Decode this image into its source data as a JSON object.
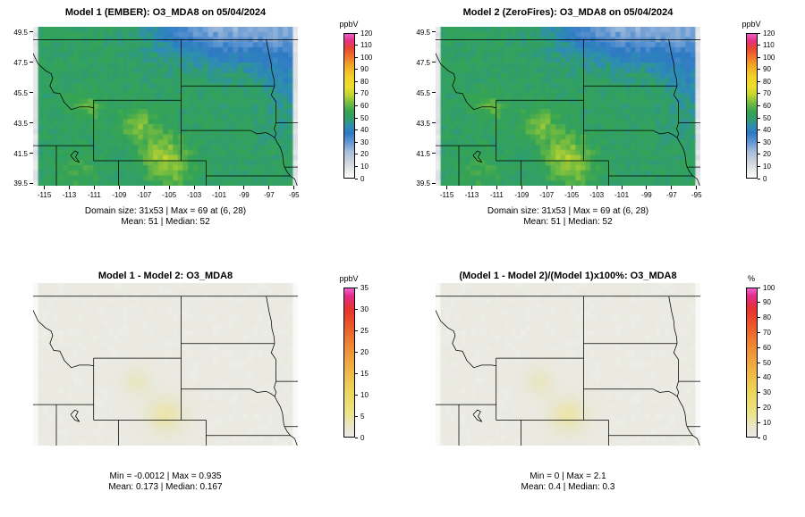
{
  "page": {
    "background": "#ffffff"
  },
  "axes": {
    "x_ticks": [
      -115,
      -113,
      -111,
      -109,
      -107,
      -105,
      -103,
      -101,
      -99,
      -97,
      -95
    ],
    "y_ticks": [
      39.5,
      41.5,
      43.5,
      45.5,
      47.5,
      49.5
    ]
  },
  "panels": [
    {
      "kind": "field",
      "title": "Model 1 (EMBER): O3_MDA8 on 05/04/2024",
      "colorbar_label": "ppbV",
      "colorbar_max": 120,
      "colorbar_ticks": [
        0,
        10,
        20,
        30,
        40,
        50,
        60,
        70,
        80,
        90,
        100,
        110,
        120
      ],
      "caption1": "Domain size: 31x53 | Max = 69 at (6, 28)",
      "caption2": "Mean: 51 |  Median: 52"
    },
    {
      "kind": "field",
      "title": "Model 2 (ZeroFires): O3_MDA8 on 05/04/2024",
      "colorbar_label": "ppbV",
      "colorbar_max": 120,
      "colorbar_ticks": [
        0,
        10,
        20,
        30,
        40,
        50,
        60,
        70,
        80,
        90,
        100,
        110,
        120
      ],
      "caption1": "Domain size: 31x53 | Max = 69 at (6, 28)",
      "caption2": "Mean: 51 |  Median: 52"
    },
    {
      "kind": "diff",
      "title": "Model 1 - Model 2: O3_MDA8",
      "colorbar_label": "ppbV",
      "colorbar_max": 35,
      "colorbar_ticks": [
        0,
        5,
        10,
        15,
        20,
        25,
        30,
        35
      ],
      "caption1": "Min = -0.0012 | Max = 0.935",
      "caption2": "Mean: 0.173 |  Median: 0.167"
    },
    {
      "kind": "diff",
      "title": "(Model 1 - Model 2)/(Model 1)x100%: O3_MDA8",
      "colorbar_label": "%",
      "colorbar_max": 100,
      "colorbar_ticks": [
        0,
        10,
        20,
        30,
        40,
        50,
        60,
        70,
        80,
        90,
        100
      ],
      "caption1": "Min = 0 | Max = 2.1",
      "caption2": "Mean: 0.4 |  Median: 0.3"
    }
  ],
  "colors": {
    "border_color": "#000000",
    "field_palette": [
      [
        0.0,
        "#ffffff"
      ],
      [
        0.05,
        "#e9eaec"
      ],
      [
        0.11,
        "#ccd3dd"
      ],
      [
        0.18,
        "#a6bedd"
      ],
      [
        0.25,
        "#5e95d1"
      ],
      [
        0.31,
        "#2e79c4"
      ],
      [
        0.36,
        "#2e8eb2"
      ],
      [
        0.405,
        "#2f9e6d"
      ],
      [
        0.46,
        "#36a452"
      ],
      [
        0.52,
        "#74bc40"
      ],
      [
        0.575,
        "#c2d531"
      ],
      [
        0.63,
        "#ebdf2b"
      ],
      [
        0.7,
        "#f3d128"
      ],
      [
        0.78,
        "#f4a627"
      ],
      [
        0.85,
        "#ef6c2a"
      ],
      [
        0.9,
        "#e94530"
      ],
      [
        0.95,
        "#e62f80"
      ],
      [
        1.0,
        "#ee5ec6"
      ]
    ],
    "diff_palette": [
      [
        0.0,
        "#ffffff"
      ],
      [
        0.003,
        "#f3f3ef"
      ],
      [
        0.008,
        "#eaeae3"
      ],
      [
        0.06,
        "#e9e6cd"
      ],
      [
        0.16,
        "#ece387"
      ],
      [
        0.3,
        "#ecd75a"
      ],
      [
        0.45,
        "#f0b445"
      ],
      [
        0.6,
        "#f08c33"
      ],
      [
        0.74,
        "#ec5b28"
      ],
      [
        0.86,
        "#e8322e"
      ],
      [
        0.95,
        "#e42b8e"
      ],
      [
        1.0,
        "#ef63cc"
      ]
    ]
  },
  "chart_data": [
    {
      "type": "heatmap",
      "panel": "top-left",
      "title": "Model 1 (EMBER): O3_MDA8 on 05/04/2024",
      "variable": "O3_MDA8",
      "date": "05/04/2024",
      "units": "ppbV",
      "x_ticks": [
        -115,
        -113,
        -111,
        -109,
        -107,
        -105,
        -103,
        -101,
        -99,
        -97,
        -95
      ],
      "y_ticks": [
        39.5,
        41.5,
        43.5,
        45.5,
        47.5,
        49.5
      ],
      "colorbar_range": [
        0,
        120
      ],
      "colorbar_ticks": [
        0,
        10,
        20,
        30,
        40,
        50,
        60,
        70,
        80,
        90,
        100,
        110,
        120
      ],
      "stats": {
        "domain_size": "31x53",
        "max": 69,
        "max_location": "(6, 28)",
        "mean": 51,
        "median": 52
      },
      "pattern": "mostly green (~45-55 ppbV); blue low region (~25-40) over NE Montana / North Dakota; yellow maxima (~65-69) over SE Wyoming, N Colorado and west-central Wyoming; pale gray strips at west and east domain edges"
    },
    {
      "type": "heatmap",
      "panel": "top-right",
      "title": "Model 2 (ZeroFires): O3_MDA8 on 05/04/2024",
      "variable": "O3_MDA8",
      "date": "05/04/2024",
      "units": "ppbV",
      "x_ticks": [
        -115,
        -113,
        -111,
        -109,
        -107,
        -105,
        -103,
        -101,
        -99,
        -97,
        -95
      ],
      "y_ticks": [
        39.5,
        41.5,
        43.5,
        45.5,
        47.5,
        49.5
      ],
      "colorbar_range": [
        0,
        120
      ],
      "colorbar_ticks": [
        0,
        10,
        20,
        30,
        40,
        50,
        60,
        70,
        80,
        90,
        100,
        110,
        120
      ],
      "stats": {
        "domain_size": "31x53",
        "max": 69,
        "max_location": "(6, 28)",
        "mean": 51,
        "median": 52
      },
      "pattern": "visually nearly identical to Model 1 panel"
    },
    {
      "type": "heatmap",
      "panel": "bottom-left",
      "title": "Model 1 - Model 2: O3_MDA8",
      "variable": "O3_MDA8 difference",
      "units": "ppbV",
      "colorbar_range": [
        0,
        35
      ],
      "colorbar_ticks": [
        0,
        5,
        10,
        15,
        20,
        25,
        30,
        35
      ],
      "stats": {
        "min": -0.0012,
        "max": 0.935,
        "mean": 0.173,
        "median": 0.167
      },
      "pattern": "near-zero everywhere: flat light-gray field with state outlines, very faint pale-yellow patches near the Model-1 ozone maxima"
    },
    {
      "type": "heatmap",
      "panel": "bottom-right",
      "title": "(Model 1 - Model 2)/(Model 1)x100%: O3_MDA8",
      "variable": "O3_MDA8 percent difference",
      "units": "%",
      "colorbar_range": [
        0,
        100
      ],
      "colorbar_ticks": [
        0,
        10,
        20,
        30,
        40,
        50,
        60,
        70,
        80,
        90,
        100
      ],
      "stats": {
        "min": 0,
        "max": 2.1,
        "mean": 0.4,
        "median": 0.3
      },
      "pattern": "near-zero everywhere: flat light-gray field with state outlines, very faint pale-yellow patches"
    }
  ]
}
